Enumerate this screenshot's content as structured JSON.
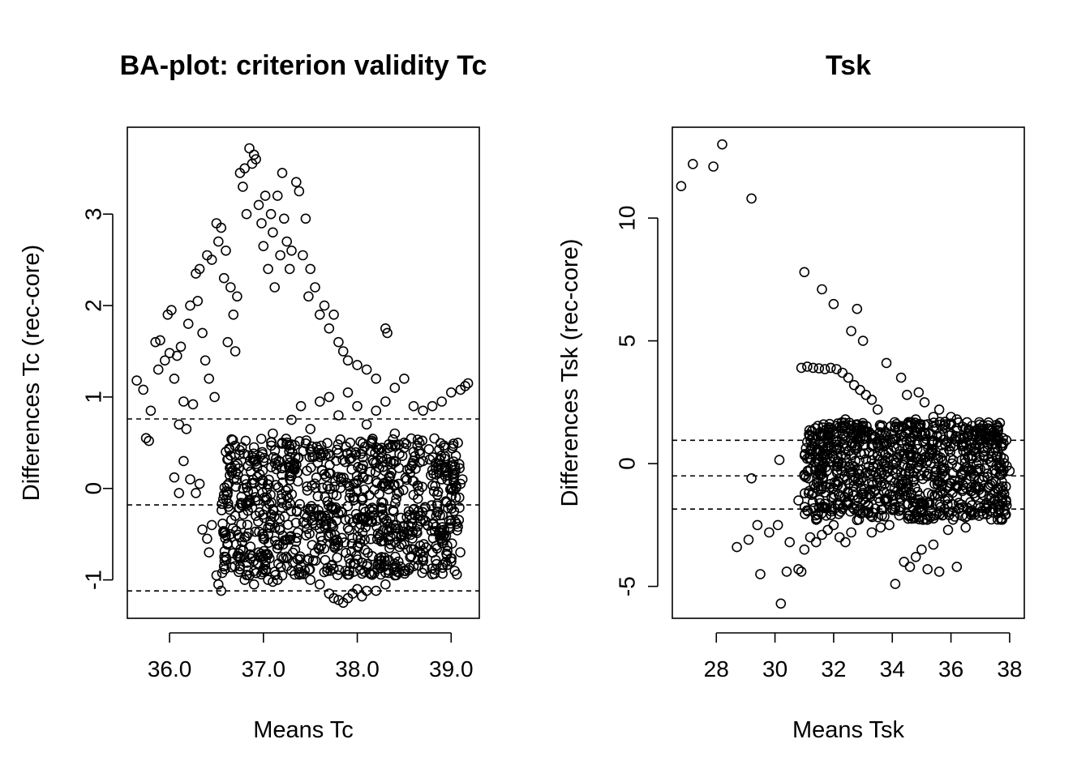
{
  "chart_data": [
    {
      "type": "scatter",
      "title": "BA-plot: criterion validity Tc",
      "xlabel": "Means Tc",
      "ylabel": "Differences Tc (rec-core)",
      "xlim": [
        35.55,
        39.3
      ],
      "ylim": [
        -1.42,
        3.95
      ],
      "x_ticks": [
        36.0,
        37.0,
        38.0,
        39.0
      ],
      "x_tick_labels": [
        "36.0",
        "37.0",
        "38.0",
        "39.0"
      ],
      "y_ticks": [
        -1,
        0,
        1,
        2,
        3
      ],
      "y_tick_labels": [
        "-1",
        "0",
        "1",
        "2",
        "3"
      ],
      "reference_lines": [
        0.76,
        -0.18,
        -1.12
      ],
      "reference_line_style": "dashed",
      "marker": "open-circle",
      "grid": false,
      "legend": "none",
      "points": [
        [
          35.65,
          1.18
        ],
        [
          35.72,
          1.08
        ],
        [
          35.75,
          0.55
        ],
        [
          35.8,
          0.85
        ],
        [
          35.78,
          0.52
        ],
        [
          35.85,
          1.6
        ],
        [
          35.9,
          1.62
        ],
        [
          35.88,
          1.3
        ],
        [
          35.95,
          1.4
        ],
        [
          36.0,
          1.48
        ],
        [
          35.98,
          1.9
        ],
        [
          36.02,
          1.95
        ],
        [
          36.05,
          1.2
        ],
        [
          36.08,
          1.45
        ],
        [
          36.1,
          0.7
        ],
        [
          36.12,
          1.55
        ],
        [
          36.15,
          0.95
        ],
        [
          36.18,
          0.65
        ],
        [
          36.2,
          1.8
        ],
        [
          36.22,
          2.0
        ],
        [
          36.25,
          0.92
        ],
        [
          36.28,
          2.35
        ],
        [
          36.3,
          2.05
        ],
        [
          36.32,
          2.4
        ],
        [
          36.35,
          1.7
        ],
        [
          36.38,
          1.4
        ],
        [
          36.4,
          2.55
        ],
        [
          36.42,
          1.2
        ],
        [
          36.45,
          2.5
        ],
        [
          36.48,
          1.0
        ],
        [
          36.5,
          2.9
        ],
        [
          36.52,
          2.7
        ],
        [
          36.55,
          2.85
        ],
        [
          36.58,
          2.3
        ],
        [
          36.6,
          2.6
        ],
        [
          36.62,
          1.6
        ],
        [
          36.65,
          2.2
        ],
        [
          36.68,
          1.9
        ],
        [
          36.7,
          1.5
        ],
        [
          36.72,
          2.1
        ],
        [
          36.75,
          3.45
        ],
        [
          36.78,
          3.3
        ],
        [
          36.8,
          3.5
        ],
        [
          36.82,
          3.0
        ],
        [
          36.85,
          3.72
        ],
        [
          36.88,
          3.55
        ],
        [
          36.9,
          3.65
        ],
        [
          36.92,
          3.6
        ],
        [
          36.95,
          3.1
        ],
        [
          36.98,
          2.9
        ],
        [
          37.0,
          2.65
        ],
        [
          37.02,
          3.2
        ],
        [
          37.05,
          2.4
        ],
        [
          37.08,
          3.0
        ],
        [
          37.1,
          2.8
        ],
        [
          37.12,
          2.2
        ],
        [
          37.15,
          3.2
        ],
        [
          37.18,
          2.55
        ],
        [
          37.2,
          3.45
        ],
        [
          37.22,
          2.95
        ],
        [
          37.25,
          2.7
        ],
        [
          37.28,
          2.4
        ],
        [
          37.3,
          2.6
        ],
        [
          37.35,
          3.35
        ],
        [
          37.38,
          3.25
        ],
        [
          37.42,
          2.55
        ],
        [
          37.45,
          2.95
        ],
        [
          37.48,
          2.1
        ],
        [
          37.5,
          2.4
        ],
        [
          37.55,
          2.2
        ],
        [
          37.6,
          1.9
        ],
        [
          37.65,
          2.0
        ],
        [
          37.7,
          1.75
        ],
        [
          37.75,
          1.9
        ],
        [
          37.8,
          1.6
        ],
        [
          37.85,
          1.5
        ],
        [
          37.9,
          1.4
        ],
        [
          38.0,
          1.35
        ],
        [
          38.1,
          1.3
        ],
        [
          38.2,
          1.2
        ],
        [
          38.3,
          1.75
        ],
        [
          38.32,
          1.7
        ],
        [
          38.4,
          1.1
        ],
        [
          38.5,
          1.2
        ],
        [
          38.6,
          0.9
        ],
        [
          38.7,
          0.85
        ],
        [
          38.8,
          0.9
        ],
        [
          38.9,
          0.95
        ],
        [
          39.0,
          1.05
        ],
        [
          39.1,
          1.08
        ],
        [
          39.15,
          1.12
        ],
        [
          39.18,
          1.15
        ],
        [
          36.05,
          0.12
        ],
        [
          36.1,
          -0.05
        ],
        [
          36.15,
          0.3
        ],
        [
          36.22,
          0.1
        ],
        [
          36.28,
          -0.05
        ],
        [
          36.32,
          0.05
        ],
        [
          36.35,
          -0.45
        ],
        [
          36.4,
          -0.55
        ],
        [
          36.42,
          -0.7
        ],
        [
          36.45,
          -0.4
        ],
        [
          36.5,
          -0.95
        ],
        [
          36.52,
          -1.05
        ],
        [
          36.55,
          -1.12
        ],
        [
          36.58,
          -0.85
        ],
        [
          36.6,
          -0.75
        ],
        [
          36.62,
          -0.6
        ],
        [
          36.65,
          -0.5
        ],
        [
          36.7,
          -0.3
        ],
        [
          36.75,
          -0.85
        ],
        [
          36.8,
          -1.0
        ],
        [
          36.85,
          -0.95
        ],
        [
          36.9,
          -1.05
        ],
        [
          36.95,
          -0.7
        ],
        [
          37.0,
          -0.55
        ],
        [
          37.05,
          -1.0
        ],
        [
          37.1,
          -1.02
        ],
        [
          37.15,
          -1.0
        ],
        [
          37.2,
          -0.95
        ],
        [
          37.3,
          -0.9
        ],
        [
          37.4,
          -0.85
        ],
        [
          37.5,
          -1.0
        ],
        [
          37.6,
          -1.05
        ],
        [
          37.7,
          -1.15
        ],
        [
          37.75,
          -1.2
        ],
        [
          37.8,
          -1.22
        ],
        [
          37.85,
          -1.25
        ],
        [
          37.9,
          -1.2
        ],
        [
          37.95,
          -1.15
        ],
        [
          38.0,
          -1.1
        ],
        [
          38.05,
          -1.18
        ],
        [
          38.1,
          -1.12
        ],
        [
          38.2,
          -1.12
        ],
        [
          38.3,
          -1.05
        ],
        [
          38.4,
          -0.95
        ],
        [
          38.5,
          -0.9
        ],
        [
          38.6,
          -0.85
        ],
        [
          38.7,
          -0.75
        ],
        [
          38.8,
          -0.7
        ],
        [
          38.9,
          -0.55
        ],
        [
          39.0,
          -0.35
        ],
        [
          39.05,
          -0.1
        ],
        [
          39.1,
          0.05
        ],
        [
          39.12,
          0.1
        ],
        [
          36.6,
          0.4
        ],
        [
          36.7,
          0.25
        ],
        [
          36.8,
          0.1
        ],
        [
          36.9,
          0.45
        ],
        [
          37.0,
          0.3
        ],
        [
          37.1,
          0.6
        ],
        [
          37.2,
          0.5
        ],
        [
          37.3,
          0.75
        ],
        [
          37.4,
          0.9
        ],
        [
          37.5,
          0.65
        ],
        [
          37.6,
          0.95
        ],
        [
          37.7,
          1.0
        ],
        [
          37.8,
          0.8
        ],
        [
          37.9,
          1.05
        ],
        [
          38.0,
          0.9
        ],
        [
          38.1,
          0.7
        ],
        [
          38.2,
          0.85
        ],
        [
          38.3,
          0.95
        ],
        [
          38.4,
          0.6
        ],
        [
          38.5,
          0.5
        ],
        [
          38.6,
          0.4
        ],
        [
          38.7,
          0.3
        ],
        [
          38.8,
          0.2
        ],
        [
          38.9,
          0.1
        ],
        [
          39.0,
          0.0
        ]
      ],
      "dense_region": {
        "x_range": [
          36.55,
          39.1
        ],
        "y_range": [
          -0.95,
          0.55
        ],
        "note": ""
      }
    },
    {
      "type": "scatter",
      "title": "Tsk",
      "xlabel": "Means Tsk",
      "ylabel": "Differences Tsk (rec-core)",
      "xlim": [
        26.5,
        38.5
      ],
      "ylim": [
        -6.3,
        13.7
      ],
      "x_ticks": [
        28,
        30,
        32,
        34,
        36,
        38
      ],
      "x_tick_labels": [
        "28",
        "30",
        "32",
        "34",
        "36",
        "38"
      ],
      "y_ticks": [
        -5,
        0,
        5,
        10
      ],
      "y_tick_labels": [
        "-5",
        "0",
        "5",
        "10"
      ],
      "reference_lines": [
        0.95,
        -0.5,
        -1.85
      ],
      "reference_line_style": "dashed",
      "marker": "open-circle",
      "grid": false,
      "legend": "none",
      "points": [
        [
          26.8,
          11.3
        ],
        [
          27.2,
          12.2
        ],
        [
          27.9,
          12.1
        ],
        [
          28.2,
          13.0
        ],
        [
          29.2,
          10.8
        ],
        [
          31.0,
          7.8
        ],
        [
          31.6,
          7.1
        ],
        [
          32.0,
          6.5
        ],
        [
          32.8,
          6.3
        ],
        [
          32.6,
          5.4
        ],
        [
          33.0,
          5.0
        ],
        [
          30.9,
          3.9
        ],
        [
          31.1,
          3.95
        ],
        [
          31.3,
          3.9
        ],
        [
          31.5,
          3.88
        ],
        [
          31.7,
          3.85
        ],
        [
          31.9,
          3.9
        ],
        [
          32.1,
          3.85
        ],
        [
          32.3,
          3.7
        ],
        [
          32.5,
          3.5
        ],
        [
          32.7,
          3.2
        ],
        [
          32.9,
          3.0
        ],
        [
          33.1,
          2.8
        ],
        [
          33.3,
          2.6
        ],
        [
          33.5,
          2.2
        ],
        [
          33.8,
          4.1
        ],
        [
          34.3,
          3.5
        ],
        [
          34.5,
          2.8
        ],
        [
          34.9,
          2.9
        ],
        [
          35.1,
          2.5
        ],
        [
          28.7,
          -3.4
        ],
        [
          29.1,
          -3.1
        ],
        [
          29.2,
          -0.6
        ],
        [
          29.4,
          -2.5
        ],
        [
          29.5,
          -4.5
        ],
        [
          29.8,
          -2.8
        ],
        [
          30.1,
          -2.5
        ],
        [
          30.15,
          0.15
        ],
        [
          30.2,
          -5.7
        ],
        [
          30.4,
          -4.4
        ],
        [
          30.5,
          -3.2
        ],
        [
          30.8,
          -4.3
        ],
        [
          30.9,
          -4.4
        ],
        [
          31.0,
          -3.5
        ],
        [
          31.2,
          -3.0
        ],
        [
          31.4,
          -3.2
        ],
        [
          31.6,
          -2.9
        ],
        [
          31.8,
          -2.7
        ],
        [
          32.0,
          -2.5
        ],
        [
          32.2,
          -3.0
        ],
        [
          32.4,
          -3.2
        ],
        [
          32.6,
          -2.8
        ],
        [
          32.8,
          -2.3
        ],
        [
          33.0,
          -2.0
        ],
        [
          33.3,
          -2.8
        ],
        [
          33.6,
          -2.6
        ],
        [
          33.9,
          -2.5
        ],
        [
          34.1,
          -4.9
        ],
        [
          34.4,
          -4.0
        ],
        [
          34.6,
          -4.2
        ],
        [
          34.8,
          -3.8
        ],
        [
          35.0,
          -3.5
        ],
        [
          35.2,
          -4.3
        ],
        [
          35.4,
          -3.3
        ],
        [
          35.6,
          -4.4
        ],
        [
          35.9,
          -2.7
        ],
        [
          36.2,
          -4.2
        ],
        [
          36.5,
          -2.6
        ],
        [
          36.8,
          -2.0
        ],
        [
          37.0,
          -1.8
        ],
        [
          31.0,
          -0.5
        ],
        [
          31.2,
          0.5
        ],
        [
          31.4,
          1.0
        ],
        [
          31.6,
          -0.2
        ],
        [
          31.8,
          0.6
        ],
        [
          32.0,
          1.2
        ],
        [
          32.2,
          1.5
        ],
        [
          32.4,
          1.8
        ],
        [
          32.6,
          1.4
        ],
        [
          32.8,
          1.6
        ],
        [
          33.0,
          1.0
        ],
        [
          33.2,
          1.3
        ],
        [
          33.4,
          1.1
        ],
        [
          33.6,
          1.5
        ],
        [
          33.8,
          1.2
        ],
        [
          34.0,
          1.0
        ],
        [
          34.2,
          1.4
        ],
        [
          34.4,
          1.1
        ],
        [
          34.6,
          1.6
        ],
        [
          34.8,
          1.8
        ],
        [
          35.0,
          1.2
        ],
        [
          35.2,
          1.6
        ],
        [
          35.4,
          1.9
        ],
        [
          35.6,
          2.2
        ],
        [
          35.8,
          1.7
        ],
        [
          36.0,
          1.9
        ],
        [
          36.2,
          1.8
        ],
        [
          36.4,
          1.5
        ],
        [
          36.6,
          1.4
        ],
        [
          36.8,
          1.3
        ],
        [
          37.0,
          1.2
        ],
        [
          37.2,
          1.0
        ],
        [
          37.4,
          0.8
        ],
        [
          37.6,
          0.5
        ],
        [
          37.8,
          0.2
        ],
        [
          37.9,
          -0.1
        ],
        [
          38.0,
          -0.3
        ],
        [
          30.8,
          -1.5
        ],
        [
          31.5,
          -1.8
        ],
        [
          32.5,
          -1.6
        ]
      ],
      "dense_region": {
        "x_range": [
          31.0,
          37.9
        ],
        "y_range": [
          -2.3,
          1.7
        ],
        "note": ""
      }
    }
  ]
}
